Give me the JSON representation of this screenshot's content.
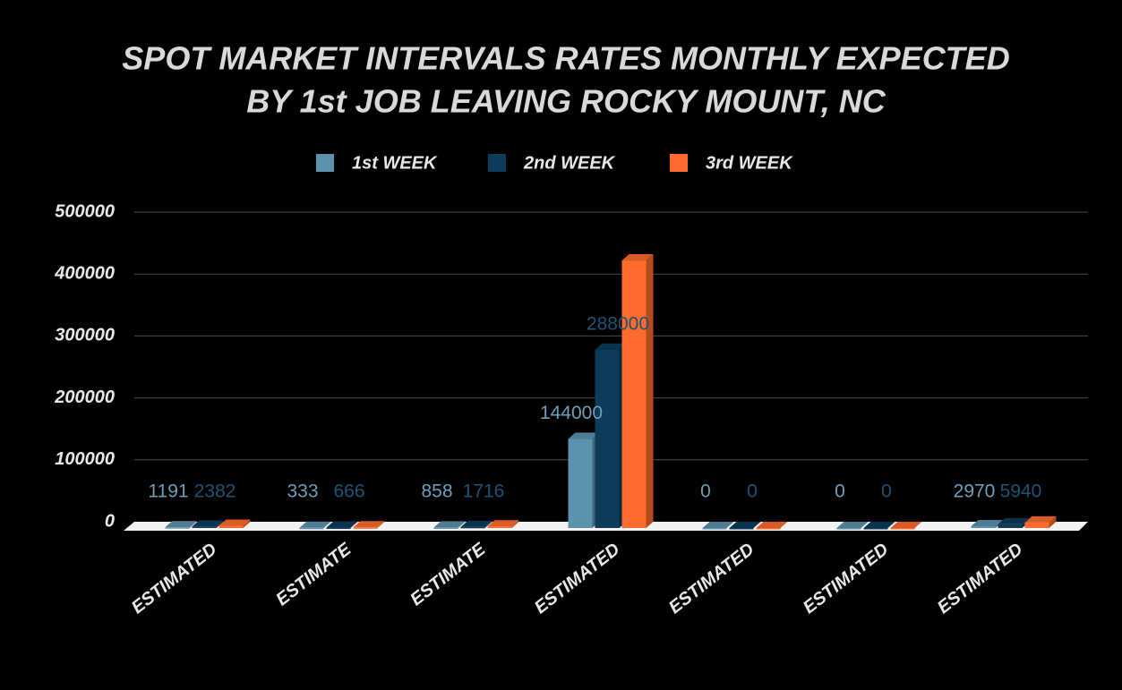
{
  "chart_data": {
    "type": "bar3d",
    "title": [
      "SPOT MARKET INTERVALS RATES MONTHLY EXPECTED",
      "BY 1st JOB LEAVING ROCKY MOUNT, NC"
    ],
    "categories": [
      "ESTIMATED",
      "ESTIMATE",
      "ESTIMATE",
      "ESTIMATED",
      "ESTIMATED",
      "ESTIMATED",
      "ESTIMATED"
    ],
    "series": [
      {
        "name": "1st WEEK",
        "color": "#5d92ad",
        "values": [
          1191,
          333,
          858,
          144000,
          0,
          0,
          2970
        ],
        "show_labels": true
      },
      {
        "name": "2nd WEEK",
        "color": "#0c3c5a",
        "values": [
          2382,
          666,
          1716,
          288000,
          0,
          0,
          5940
        ],
        "show_labels": true
      },
      {
        "name": "3rd WEEK",
        "color": "#ff6b2c",
        "values": [
          3573,
          999,
          2574,
          432000,
          0,
          0,
          8910
        ],
        "show_labels": false
      }
    ],
    "ylim": [
      0,
      500000
    ],
    "yticks": [
      0,
      100000,
      200000,
      300000,
      400000,
      500000
    ],
    "grid": true,
    "legend": "top"
  }
}
